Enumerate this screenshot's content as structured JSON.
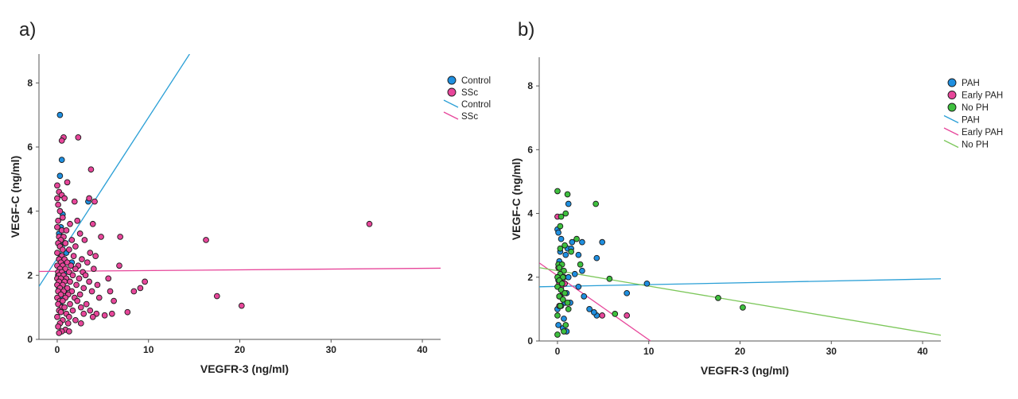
{
  "chart_data": [
    {
      "type": "scatter",
      "panel_label": "a)",
      "xlabel": "VEGFR-3 (ng/ml)",
      "ylabel": "VEGF-C (ng/ml)",
      "xlim": [
        -2,
        42
      ],
      "ylim": [
        0,
        8.9
      ],
      "xticks": [
        0,
        10,
        20,
        30,
        40
      ],
      "yticks": [
        0,
        2,
        4,
        6,
        8
      ],
      "legend_position": "top-right",
      "series": [
        {
          "name": "Control",
          "kind": "points",
          "color": "#1f8fe0",
          "points": [
            [
              0.3,
              7.0
            ],
            [
              0.5,
              5.6
            ],
            [
              0.3,
              5.1
            ],
            [
              3.4,
              4.3
            ],
            [
              0.6,
              3.9
            ],
            [
              0.4,
              3.5
            ],
            [
              0.2,
              3.3
            ],
            [
              0.6,
              3.2
            ],
            [
              0.8,
              3.0
            ],
            [
              0.3,
              2.9
            ],
            [
              1.0,
              2.7
            ],
            [
              0.4,
              2.6
            ],
            [
              0.2,
              2.5
            ],
            [
              0.7,
              2.4
            ],
            [
              1.6,
              2.4
            ],
            [
              0.5,
              2.3
            ],
            [
              0.3,
              2.2
            ],
            [
              0.9,
              2.1
            ],
            [
              0.1,
              2.0
            ],
            [
              0.6,
              1.9
            ],
            [
              0.4,
              1.8
            ],
            [
              0.2,
              1.6
            ],
            [
              0.8,
              1.5
            ],
            [
              0.5,
              1.3
            ],
            [
              0.3,
              1.1
            ],
            [
              0.7,
              1.0
            ],
            [
              0.4,
              0.9
            ]
          ]
        },
        {
          "name": "SSc",
          "kind": "points",
          "color": "#e7469a",
          "points": [
            [
              0.7,
              6.3
            ],
            [
              0.5,
              6.2
            ],
            [
              2.3,
              6.3
            ],
            [
              3.7,
              5.3
            ],
            [
              1.1,
              4.9
            ],
            [
              0.0,
              4.8
            ],
            [
              0.2,
              4.6
            ],
            [
              0.5,
              4.5
            ],
            [
              0.0,
              4.4
            ],
            [
              0.8,
              4.4
            ],
            [
              3.5,
              4.4
            ],
            [
              0.1,
              4.2
            ],
            [
              1.9,
              4.3
            ],
            [
              4.1,
              4.3
            ],
            [
              0.3,
              4.0
            ],
            [
              0.6,
              3.8
            ],
            [
              0.1,
              3.7
            ],
            [
              2.2,
              3.7
            ],
            [
              1.4,
              3.6
            ],
            [
              3.9,
              3.6
            ],
            [
              0.0,
              3.5
            ],
            [
              0.5,
              3.4
            ],
            [
              1.0,
              3.4
            ],
            [
              2.5,
              3.3
            ],
            [
              0.2,
              3.2
            ],
            [
              0.7,
              3.2
            ],
            [
              4.8,
              3.2
            ],
            [
              6.9,
              3.2
            ],
            [
              16.3,
              3.1
            ],
            [
              34.2,
              3.6
            ],
            [
              0.4,
              3.1
            ],
            [
              1.6,
              3.1
            ],
            [
              3.0,
              3.1
            ],
            [
              0.1,
              3.0
            ],
            [
              0.9,
              3.0
            ],
            [
              2.0,
              2.9
            ],
            [
              0.3,
              2.9
            ],
            [
              0.6,
              2.8
            ],
            [
              1.3,
              2.8
            ],
            [
              3.6,
              2.7
            ],
            [
              0.0,
              2.7
            ],
            [
              0.5,
              2.6
            ],
            [
              1.8,
              2.6
            ],
            [
              4.2,
              2.6
            ],
            [
              0.2,
              2.5
            ],
            [
              0.8,
              2.5
            ],
            [
              2.7,
              2.5
            ],
            [
              0.4,
              2.4
            ],
            [
              1.1,
              2.4
            ],
            [
              3.3,
              2.4
            ],
            [
              0.0,
              2.3
            ],
            [
              0.6,
              2.3
            ],
            [
              1.5,
              2.3
            ],
            [
              2.3,
              2.3
            ],
            [
              6.8,
              2.3
            ],
            [
              0.3,
              2.2
            ],
            [
              0.9,
              2.2
            ],
            [
              2.0,
              2.2
            ],
            [
              4.0,
              2.2
            ],
            [
              0.1,
              2.1
            ],
            [
              0.5,
              2.1
            ],
            [
              1.3,
              2.1
            ],
            [
              2.8,
              2.1
            ],
            [
              0.2,
              2.0
            ],
            [
              0.7,
              2.0
            ],
            [
              1.7,
              2.0
            ],
            [
              3.1,
              2.0
            ],
            [
              0.0,
              1.9
            ],
            [
              0.4,
              1.9
            ],
            [
              1.0,
              1.9
            ],
            [
              2.4,
              1.9
            ],
            [
              5.6,
              1.9
            ],
            [
              0.2,
              1.8
            ],
            [
              0.8,
              1.8
            ],
            [
              1.4,
              1.8
            ],
            [
              3.5,
              1.8
            ],
            [
              9.6,
              1.8
            ],
            [
              0.0,
              1.7
            ],
            [
              0.6,
              1.7
            ],
            [
              2.1,
              1.7
            ],
            [
              4.4,
              1.7
            ],
            [
              0.3,
              1.6
            ],
            [
              1.1,
              1.6
            ],
            [
              2.9,
              1.6
            ],
            [
              9.1,
              1.6
            ],
            [
              0.1,
              1.5
            ],
            [
              0.7,
              1.5
            ],
            [
              1.6,
              1.5
            ],
            [
              3.8,
              1.5
            ],
            [
              5.8,
              1.5
            ],
            [
              8.4,
              1.5
            ],
            [
              0.4,
              1.4
            ],
            [
              1.2,
              1.4
            ],
            [
              2.5,
              1.4
            ],
            [
              0.0,
              1.3
            ],
            [
              0.9,
              1.3
            ],
            [
              1.9,
              1.3
            ],
            [
              4.6,
              1.3
            ],
            [
              17.5,
              1.35
            ],
            [
              0.3,
              1.2
            ],
            [
              0.6,
              1.2
            ],
            [
              2.2,
              1.2
            ],
            [
              6.2,
              1.2
            ],
            [
              0.1,
              1.1
            ],
            [
              1.4,
              1.1
            ],
            [
              3.2,
              1.1
            ],
            [
              0.5,
              1.0
            ],
            [
              0.8,
              1.0
            ],
            [
              2.6,
              1.0
            ],
            [
              20.2,
              1.05
            ],
            [
              0.2,
              0.9
            ],
            [
              1.7,
              0.9
            ],
            [
              3.6,
              0.9
            ],
            [
              0.4,
              0.85
            ],
            [
              1.0,
              0.8
            ],
            [
              2.9,
              0.8
            ],
            [
              4.3,
              0.8
            ],
            [
              6.0,
              0.8
            ],
            [
              7.7,
              0.85
            ],
            [
              0.0,
              0.7
            ],
            [
              1.3,
              0.7
            ],
            [
              3.9,
              0.7
            ],
            [
              0.6,
              0.6
            ],
            [
              2.0,
              0.6
            ],
            [
              5.2,
              0.75
            ],
            [
              0.3,
              0.5
            ],
            [
              1.2,
              0.5
            ],
            [
              2.6,
              0.5
            ],
            [
              0.1,
              0.4
            ],
            [
              0.9,
              0.3
            ],
            [
              0.5,
              0.25
            ],
            [
              1.3,
              0.25
            ],
            [
              0.2,
              0.2
            ]
          ]
        },
        {
          "name": "Control",
          "kind": "line",
          "color": "#2a9fd6",
          "x1": -2,
          "y1": 1.65,
          "x2": 14.5,
          "y2": 8.9
        },
        {
          "name": "SSc",
          "kind": "line",
          "color": "#e7469a",
          "x1": -2,
          "y1": 2.12,
          "x2": 42,
          "y2": 2.22
        }
      ]
    },
    {
      "type": "scatter",
      "panel_label": "b)",
      "xlabel": "VEGFR-3 (ng/ml)",
      "ylabel": "VEGF-C (ng/ml)",
      "xlim": [
        -2,
        42
      ],
      "ylim": [
        0,
        8.9
      ],
      "xticks": [
        0,
        10,
        20,
        30,
        40
      ],
      "yticks": [
        0,
        2,
        4,
        6,
        8
      ],
      "legend_position": "top-right",
      "series": [
        {
          "name": "PAH",
          "kind": "points",
          "color": "#1f8fe0",
          "points": [
            [
              1.2,
              4.3
            ],
            [
              0.0,
              3.5
            ],
            [
              0.1,
              3.4
            ],
            [
              0.4,
              3.2
            ],
            [
              2.7,
              3.1
            ],
            [
              1.6,
              3.1
            ],
            [
              4.9,
              3.1
            ],
            [
              1.1,
              2.9
            ],
            [
              1.5,
              2.9
            ],
            [
              0.3,
              2.8
            ],
            [
              0.9,
              2.7
            ],
            [
              2.3,
              2.7
            ],
            [
              4.3,
              2.6
            ],
            [
              0.2,
              2.5
            ],
            [
              2.7,
              2.2
            ],
            [
              1.9,
              2.1
            ],
            [
              0.7,
              2.0
            ],
            [
              1.2,
              2.0
            ],
            [
              0.1,
              1.9
            ],
            [
              0.6,
              1.8
            ],
            [
              9.8,
              1.8
            ],
            [
              0.2,
              1.7
            ],
            [
              2.3,
              1.7
            ],
            [
              0.4,
              1.6
            ],
            [
              1.0,
              1.5
            ],
            [
              7.6,
              1.5
            ],
            [
              0.2,
              1.4
            ],
            [
              2.9,
              1.4
            ],
            [
              0.8,
              1.2
            ],
            [
              1.4,
              1.2
            ],
            [
              0.4,
              1.1
            ],
            [
              0.0,
              1.0
            ],
            [
              3.5,
              1.0
            ],
            [
              4.3,
              0.8
            ],
            [
              4.0,
              0.9
            ],
            [
              0.7,
              0.7
            ],
            [
              0.1,
              0.5
            ],
            [
              0.6,
              0.4
            ],
            [
              1.0,
              0.3
            ]
          ]
        },
        {
          "name": "Early PAH",
          "kind": "points",
          "color": "#e7469a",
          "points": [
            [
              0.0,
              3.9
            ],
            [
              0.1,
              2.3
            ],
            [
              0.5,
              2.0
            ],
            [
              0.3,
              1.9
            ],
            [
              0.2,
              1.8
            ],
            [
              0.8,
              1.8
            ],
            [
              0.4,
              1.7
            ],
            [
              0.6,
              1.5
            ],
            [
              0.3,
              1.4
            ],
            [
              7.6,
              0.8
            ],
            [
              4.9,
              0.8
            ],
            [
              0.2,
              1.1
            ]
          ]
        },
        {
          "name": "No PH",
          "kind": "points",
          "color": "#3ec03e",
          "points": [
            [
              0.0,
              4.7
            ],
            [
              1.1,
              4.6
            ],
            [
              4.2,
              4.3
            ],
            [
              0.9,
              4.0
            ],
            [
              0.4,
              3.9
            ],
            [
              0.3,
              3.6
            ],
            [
              2.1,
              3.2
            ],
            [
              0.8,
              3.0
            ],
            [
              0.3,
              2.9
            ],
            [
              1.5,
              2.8
            ],
            [
              0.1,
              2.4
            ],
            [
              0.5,
              2.4
            ],
            [
              0.2,
              2.3
            ],
            [
              2.5,
              2.4
            ],
            [
              0.7,
              2.2
            ],
            [
              0.3,
              2.1
            ],
            [
              0.0,
              2.0
            ],
            [
              0.6,
              2.0
            ],
            [
              5.7,
              1.95
            ],
            [
              0.2,
              1.9
            ],
            [
              0.5,
              1.8
            ],
            [
              0.0,
              1.7
            ],
            [
              0.4,
              1.6
            ],
            [
              0.8,
              1.5
            ],
            [
              0.2,
              1.4
            ],
            [
              0.6,
              1.3
            ],
            [
              1.1,
              1.2
            ],
            [
              0.3,
              1.1
            ],
            [
              1.2,
              1.0
            ],
            [
              17.6,
              1.35
            ],
            [
              20.3,
              1.05
            ],
            [
              6.3,
              0.85
            ],
            [
              0.0,
              0.8
            ],
            [
              0.9,
              0.5
            ],
            [
              0.7,
              0.3
            ],
            [
              0.0,
              0.2
            ]
          ]
        },
        {
          "name": "PAH",
          "kind": "line",
          "color": "#2a9fd6",
          "x1": -2,
          "y1": 1.7,
          "x2": 42,
          "y2": 1.95
        },
        {
          "name": "Early PAH",
          "kind": "line",
          "color": "#e7469a",
          "x1": -2,
          "y1": 2.45,
          "x2": 10.2,
          "y2": 0.0
        },
        {
          "name": "No PH",
          "kind": "line",
          "color": "#7cc75a",
          "x1": -2,
          "y1": 2.3,
          "x2": 42,
          "y2": 0.18
        }
      ]
    }
  ]
}
